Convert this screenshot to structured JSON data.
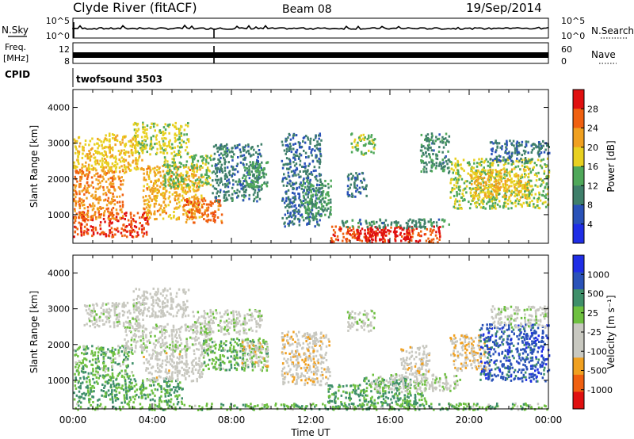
{
  "header": {
    "station": "Clyde River (fitACF)",
    "beam": "Beam 08",
    "date": "19/Sep/2014"
  },
  "noise_panel": {
    "left_label": "N.Sky",
    "right_label": "N.Search",
    "ticks": {
      "left": [
        "10^5",
        "10^0"
      ],
      "right": [
        "10^5",
        "10^0"
      ]
    }
  },
  "freq_panel": {
    "left_label_1": "Freq.",
    "left_label_2": "[MHz]",
    "left_ticks": [
      "12",
      "8"
    ],
    "right_label": "Nave",
    "right_ticks": [
      "60",
      "0"
    ]
  },
  "cpid_panel": {
    "label": "CPID",
    "program": "twofsound 3503"
  },
  "colors": {
    "power_scale": [
      "#1f2ee6",
      "#2a52b8",
      "#3f7f6a",
      "#4fa85a",
      "#e8d020",
      "#f0a020",
      "#f06010",
      "#e01010"
    ],
    "velocity_scale": [
      "#e01010",
      "#f06010",
      "#f0a020",
      "#c8c8c0",
      "#c8c8c0",
      "#6ec040",
      "#3f8f6a",
      "#2a52b8",
      "#1f2ee6"
    ]
  },
  "chart_data": [
    {
      "type": "heatmap",
      "name": "Power",
      "xlabel": "",
      "ylabel": "Slant Range [km]",
      "xlim": [
        0,
        24
      ],
      "ylim": [
        200,
        4500
      ],
      "yticks": [
        "1000",
        "2000",
        "3000",
        "4000"
      ],
      "colorbar": {
        "label": "Power [dB]",
        "ticks": [
          "28",
          "24",
          "20",
          "16",
          "12",
          "8",
          "4"
        ],
        "range": [
          0,
          30
        ]
      },
      "blobs": [
        {
          "t0": 0.0,
          "t1": 3.8,
          "r0": 400,
          "r1": 1100,
          "val": 26
        },
        {
          "t0": 0.0,
          "t1": 2.5,
          "r0": 900,
          "r1": 2300,
          "val": 22
        },
        {
          "t0": 0.0,
          "t1": 1.5,
          "r0": 2300,
          "r1": 3200,
          "val": 18
        },
        {
          "t0": 1.5,
          "t1": 3.5,
          "r0": 2200,
          "r1": 3300,
          "val": 18
        },
        {
          "t0": 3.0,
          "t1": 5.8,
          "r0": 2700,
          "r1": 3600,
          "val": 16
        },
        {
          "t0": 3.5,
          "t1": 6.5,
          "r0": 900,
          "r1": 2400,
          "val": 20
        },
        {
          "t0": 4.5,
          "t1": 7.0,
          "r0": 1800,
          "r1": 2700,
          "val": 14
        },
        {
          "t0": 5.5,
          "t1": 7.5,
          "r0": 800,
          "r1": 1500,
          "val": 24
        },
        {
          "t0": 7.0,
          "t1": 9.5,
          "r0": 1400,
          "r1": 3000,
          "val": 9
        },
        {
          "t0": 8.5,
          "t1": 9.8,
          "r0": 1800,
          "r1": 2500,
          "val": 12
        },
        {
          "t0": 10.5,
          "t1": 12.5,
          "r0": 700,
          "r1": 3300,
          "val": 8
        },
        {
          "t0": 11.5,
          "t1": 13.0,
          "r0": 900,
          "r1": 2000,
          "val": 12
        },
        {
          "t0": 13.0,
          "t1": 18.5,
          "r0": 250,
          "r1": 700,
          "val": 26
        },
        {
          "t0": 14.3,
          "t1": 17.0,
          "r0": 300,
          "r1": 650,
          "val": 29
        },
        {
          "t0": 13.5,
          "t1": 19.0,
          "r0": 650,
          "r1": 900,
          "val": 10
        },
        {
          "t0": 14.0,
          "t1": 15.2,
          "r0": 2700,
          "r1": 3300,
          "val": 14
        },
        {
          "t0": 13.8,
          "t1": 14.8,
          "r0": 1500,
          "r1": 2200,
          "val": 8
        },
        {
          "t0": 17.5,
          "t1": 19.0,
          "r0": 2200,
          "r1": 3300,
          "val": 10
        },
        {
          "t0": 19.0,
          "t1": 24.0,
          "r0": 1200,
          "r1": 2600,
          "val": 15
        },
        {
          "t0": 20.0,
          "t1": 23.0,
          "r0": 1500,
          "r1": 2300,
          "val": 19
        },
        {
          "t0": 21.0,
          "t1": 24.0,
          "r0": 2500,
          "r1": 3100,
          "val": 8
        }
      ]
    },
    {
      "type": "heatmap",
      "name": "Velocity",
      "xlabel": "Time UT",
      "ylabel": "Slant Range [km]",
      "xlim": [
        0,
        24
      ],
      "ylim": [
        200,
        4500
      ],
      "xticks": [
        "00:00",
        "04:00",
        "08:00",
        "12:00",
        "16:00",
        "20:00",
        "00:00"
      ],
      "yticks": [
        "1000",
        "2000",
        "3000",
        "4000"
      ],
      "colorbar": {
        "label": "Velocity [m s⁻¹]",
        "ticks": [
          "1000",
          "500",
          "25",
          "-25",
          "-100",
          "-500",
          "-1000"
        ],
        "range": [
          -1200,
          1200
        ]
      },
      "blobs": [
        {
          "t0": 0.0,
          "t1": 5.5,
          "r0": 400,
          "r1": 1100,
          "val": 420
        },
        {
          "t0": 0.0,
          "t1": 3.0,
          "r0": 1100,
          "r1": 2000,
          "val": 300
        },
        {
          "t0": 0.5,
          "t1": 3.5,
          "r0": 2500,
          "r1": 3200,
          "val": 0
        },
        {
          "t0": 3.0,
          "t1": 5.8,
          "r0": 2800,
          "r1": 3600,
          "val": -150
        },
        {
          "t0": 2.5,
          "t1": 7.0,
          "r0": 1800,
          "r1": 2600,
          "val": 0
        },
        {
          "t0": 3.5,
          "t1": 6.5,
          "r0": 1000,
          "r1": 1800,
          "val": -200
        },
        {
          "t0": 6.0,
          "t1": 9.5,
          "r0": 2300,
          "r1": 3000,
          "val": 0
        },
        {
          "t0": 6.5,
          "t1": 9.8,
          "r0": 1300,
          "r1": 2200,
          "val": 300
        },
        {
          "t0": 8.5,
          "t1": 9.8,
          "r0": 1400,
          "r1": 2100,
          "val": -300
        },
        {
          "t0": 10.5,
          "t1": 13.0,
          "r0": 900,
          "r1": 2400,
          "val": -300
        },
        {
          "t0": 12.8,
          "t1": 14.5,
          "r0": 200,
          "r1": 900,
          "val": 450
        },
        {
          "t0": 14.5,
          "t1": 17.8,
          "r0": 350,
          "r1": 1100,
          "val": 430
        },
        {
          "t0": 15.0,
          "t1": 19.5,
          "r0": 700,
          "r1": 1200,
          "val": 0
        },
        {
          "t0": 13.8,
          "t1": 15.2,
          "r0": 2400,
          "r1": 3000,
          "val": 0
        },
        {
          "t0": 16.5,
          "t1": 18.0,
          "r0": 1200,
          "r1": 2000,
          "val": -250
        },
        {
          "t0": 19.0,
          "t1": 21.0,
          "r0": 1300,
          "r1": 2300,
          "val": -350
        },
        {
          "t0": 20.5,
          "t1": 24.0,
          "r0": 1000,
          "r1": 2600,
          "val": 800
        },
        {
          "t0": 21.0,
          "t1": 24.0,
          "r0": 2500,
          "r1": 3100,
          "val": 0
        },
        {
          "t0": 0.0,
          "t1": 24.0,
          "r0": 200,
          "r1": 380,
          "val": 300
        }
      ]
    }
  ]
}
